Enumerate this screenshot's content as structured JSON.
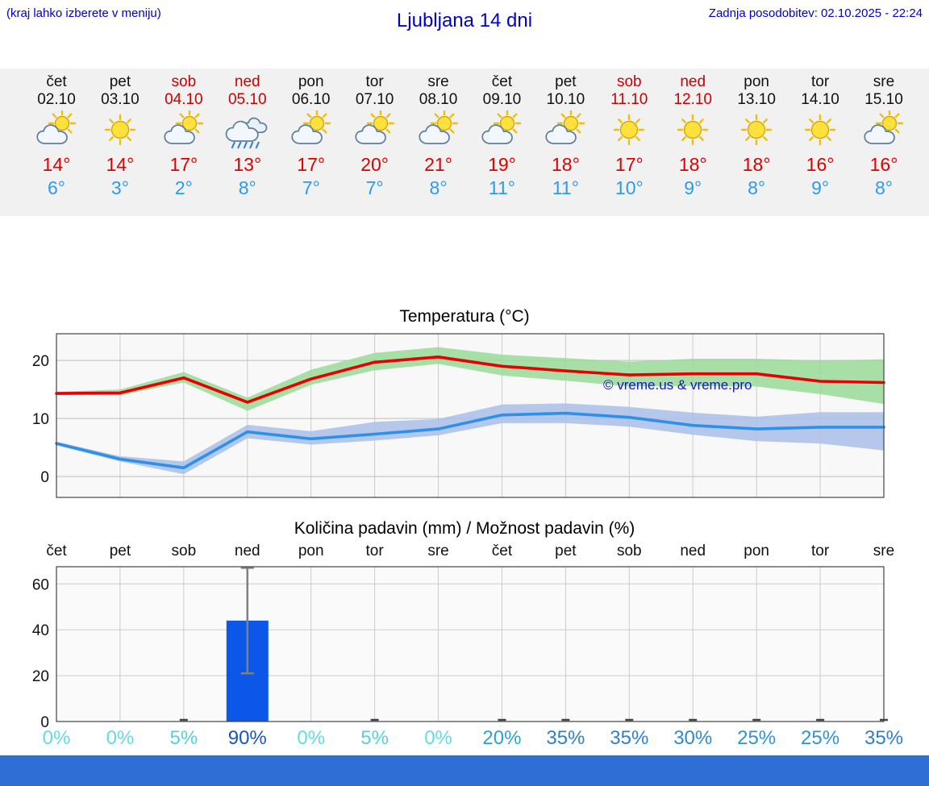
{
  "header": {
    "hint": "(kraj lahko izberete v meniju)",
    "title": "Ljubljana 14 dni",
    "updated": "Zadnja posodobitev: 02.10.2025 - 22:24"
  },
  "colors": {
    "header_blue": "#0000cc",
    "weekend_red": "#cc0000",
    "tmax_red": "#dd0000",
    "tmin_blue": "#2b9bf0",
    "strip_bg": "#f1f1f1",
    "footer_blue": "#2e6fd6"
  },
  "strip": {
    "days": [
      {
        "name": "čet",
        "date": "02.10",
        "weekend": false,
        "icon": "sun-cloud",
        "tmax": "14°",
        "tmin": "6°"
      },
      {
        "name": "pet",
        "date": "03.10",
        "weekend": false,
        "icon": "sun",
        "tmax": "14°",
        "tmin": "3°"
      },
      {
        "name": "sob",
        "date": "04.10",
        "weekend": true,
        "icon": "sun-cloud",
        "tmax": "17°",
        "tmin": "2°"
      },
      {
        "name": "ned",
        "date": "05.10",
        "weekend": true,
        "icon": "rain",
        "tmax": "13°",
        "tmin": "8°"
      },
      {
        "name": "pon",
        "date": "06.10",
        "weekend": false,
        "icon": "sun-cloud",
        "tmax": "17°",
        "tmin": "7°"
      },
      {
        "name": "tor",
        "date": "07.10",
        "weekend": false,
        "icon": "sun-cloud",
        "tmax": "20°",
        "tmin": "7°"
      },
      {
        "name": "sre",
        "date": "08.10",
        "weekend": false,
        "icon": "sun-cloud",
        "tmax": "21°",
        "tmin": "8°"
      },
      {
        "name": "čet",
        "date": "09.10",
        "weekend": false,
        "icon": "sun-cloud",
        "tmax": "19°",
        "tmin": "11°"
      },
      {
        "name": "pet",
        "date": "10.10",
        "weekend": false,
        "icon": "sun-cloud",
        "tmax": "18°",
        "tmin": "11°"
      },
      {
        "name": "sob",
        "date": "11.10",
        "weekend": true,
        "icon": "sun",
        "tmax": "17°",
        "tmin": "10°"
      },
      {
        "name": "ned",
        "date": "12.10",
        "weekend": true,
        "icon": "sun",
        "tmax": "18°",
        "tmin": "9°"
      },
      {
        "name": "pon",
        "date": "13.10",
        "weekend": false,
        "icon": "sun",
        "tmax": "18°",
        "tmin": "8°"
      },
      {
        "name": "tor",
        "date": "14.10",
        "weekend": false,
        "icon": "sun",
        "tmax": "16°",
        "tmin": "9°"
      },
      {
        "name": "sre",
        "date": "15.10",
        "weekend": false,
        "icon": "sun-cloud",
        "tmax": "16°",
        "tmin": "8°"
      }
    ]
  },
  "chart_data": [
    {
      "type": "line",
      "title": "Temperatura (°C)",
      "x": [
        "čet 02.10",
        "pet 03.10",
        "sob 04.10",
        "ned 05.10",
        "pon 06.10",
        "tor 07.10",
        "sre 08.10",
        "čet 09.10",
        "pet 10.10",
        "sob 11.10",
        "ned 12.10",
        "pon 13.10",
        "tor 14.10",
        "sre 15.10"
      ],
      "ylim": [
        -3.6,
        24.6
      ],
      "yticks": [
        0,
        10,
        20
      ],
      "grid": true,
      "legend": "none",
      "watermark": "© vreme.us & vreme.pro",
      "series": [
        {
          "name": "max-temperature",
          "color": "#e60000",
          "band_color": "#99db99",
          "values": [
            14.3,
            14.4,
            17.0,
            12.8,
            16.8,
            19.7,
            20.6,
            19.0,
            18.2,
            17.5,
            17.7,
            17.7,
            16.4,
            16.2
          ],
          "band_high": [
            14.6,
            15.0,
            18.0,
            13.6,
            18.4,
            21.3,
            22.3,
            21.0,
            20.4,
            19.8,
            20.3,
            20.3,
            20.0,
            20.2
          ],
          "band_low": [
            14.1,
            14.0,
            16.2,
            11.3,
            15.8,
            18.3,
            19.4,
            17.4,
            16.5,
            15.5,
            15.6,
            15.5,
            14.2,
            12.5
          ]
        },
        {
          "name": "min-temperature",
          "color": "#2f90e8",
          "band_color": "#a9c0ea",
          "values": [
            5.7,
            3.0,
            1.5,
            7.7,
            6.5,
            7.3,
            8.2,
            10.6,
            10.9,
            10.2,
            8.8,
            8.2,
            8.5,
            8.5
          ],
          "band_high": [
            6.0,
            3.5,
            2.6,
            8.9,
            7.8,
            9.4,
            9.9,
            12.4,
            12.6,
            12.0,
            11.0,
            10.3,
            11.1,
            11.1
          ],
          "band_low": [
            5.4,
            2.6,
            0.4,
            6.6,
            5.5,
            6.2,
            7.1,
            9.2,
            9.2,
            8.6,
            7.2,
            6.1,
            5.7,
            4.5
          ]
        }
      ]
    },
    {
      "type": "bar",
      "title": "Količina padavin (mm) / Možnost padavin (%)",
      "categories": [
        "čet",
        "pet",
        "sob",
        "ned",
        "pon",
        "tor",
        "sre",
        "čet",
        "pet",
        "sob",
        "ned",
        "pon",
        "tor",
        "sre"
      ],
      "values": [
        0,
        0,
        0,
        44,
        0,
        0,
        0,
        0,
        0,
        0,
        0,
        0,
        0,
        0
      ],
      "error_low": [
        null,
        null,
        null,
        21,
        null,
        null,
        null,
        null,
        null,
        null,
        null,
        null,
        null,
        null
      ],
      "error_high": [
        null,
        null,
        null,
        67,
        null,
        null,
        null,
        null,
        null,
        null,
        null,
        null,
        null,
        null
      ],
      "ylim": [
        0,
        67.5
      ],
      "yticks": [
        0,
        20,
        40,
        60
      ],
      "bar_color": "#0d57e8",
      "probabilities": [
        {
          "label": "0%",
          "color": "#62dbe3"
        },
        {
          "label": "0%",
          "color": "#62dbe3"
        },
        {
          "label": "5%",
          "color": "#55cfe0"
        },
        {
          "label": "90%",
          "color": "#1553c6"
        },
        {
          "label": "0%",
          "color": "#62dbe3"
        },
        {
          "label": "5%",
          "color": "#55cfe0"
        },
        {
          "label": "0%",
          "color": "#62dbe3"
        },
        {
          "label": "20%",
          "color": "#2f9fd9"
        },
        {
          "label": "35%",
          "color": "#2d80cd"
        },
        {
          "label": "35%",
          "color": "#2d80cd"
        },
        {
          "label": "30%",
          "color": "#2e8ad2"
        },
        {
          "label": "25%",
          "color": "#2f93d6"
        },
        {
          "label": "25%",
          "color": "#2f93d6"
        },
        {
          "label": "35%",
          "color": "#2d80cd"
        }
      ]
    }
  ]
}
